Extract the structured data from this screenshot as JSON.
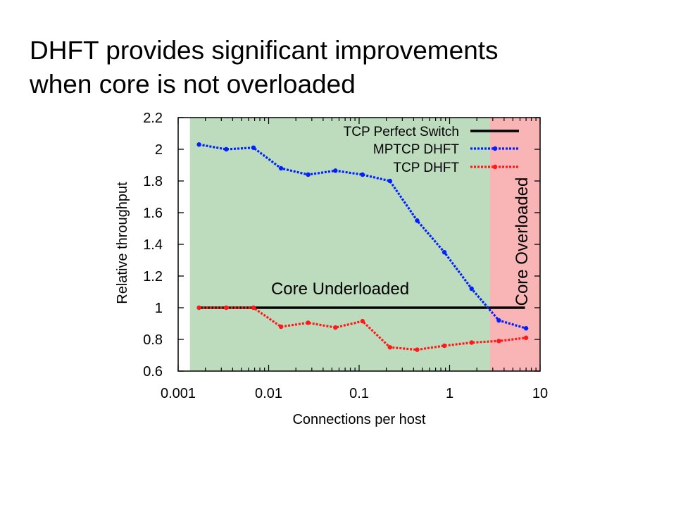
{
  "slide": {
    "title_line1": "DHFT provides significant improvements",
    "title_line2": "when core is not overloaded"
  },
  "chart_data": {
    "type": "line",
    "xlabel": "Connections per host",
    "ylabel": "Relative throughput",
    "xscale": "log",
    "xlim": [
      0.001,
      10
    ],
    "ylim": [
      0.6,
      2.2
    ],
    "xticks": [
      0.001,
      0.01,
      0.1,
      1,
      10
    ],
    "xtick_labels": [
      "0.001",
      "0.01",
      "0.1",
      "1",
      "10"
    ],
    "yticks": [
      0.6,
      0.8,
      1,
      1.2,
      1.4,
      1.6,
      1.8,
      2,
      2.2
    ],
    "ytick_labels": [
      "0.6",
      "0.8",
      "1",
      "1.2",
      "1.4",
      "1.6",
      "1.8",
      "2",
      "2.2"
    ],
    "grid": false,
    "legend_position": "top-right",
    "regions": [
      {
        "label": "Core Underloaded",
        "x_start": 0.00135,
        "x_end": 2.8,
        "color": "#bddcbd"
      },
      {
        "label": "Core Overloaded",
        "x_start": 2.8,
        "x_end": 10,
        "color": "#f9b4b5"
      }
    ],
    "series": [
      {
        "name": "TCP Perfect Switch",
        "color": "#000000",
        "style": "solid",
        "markers": false,
        "x": [
          0.0017,
          6.8
        ],
        "y": [
          1.0,
          1.0
        ]
      },
      {
        "name": "MPTCP DHFT",
        "color": "#0020ff",
        "style": "dotted",
        "markers": true,
        "x": [
          0.0017,
          0.0034,
          0.0068,
          0.0137,
          0.0273,
          0.0547,
          0.109,
          0.219,
          0.438,
          0.875,
          1.75,
          3.5,
          7.0
        ],
        "y": [
          2.03,
          2.0,
          2.01,
          1.88,
          1.84,
          1.865,
          1.84,
          1.8,
          1.55,
          1.35,
          1.12,
          0.92,
          0.87
        ]
      },
      {
        "name": "TCP DHFT",
        "color": "#ff1a1a",
        "style": "dotted",
        "markers": true,
        "x": [
          0.0017,
          0.0034,
          0.0068,
          0.0137,
          0.0273,
          0.0547,
          0.109,
          0.219,
          0.438,
          0.875,
          1.75,
          3.5,
          7.0
        ],
        "y": [
          1.0,
          1.0,
          1.0,
          0.88,
          0.905,
          0.875,
          0.915,
          0.75,
          0.735,
          0.76,
          0.78,
          0.79,
          0.81
        ]
      }
    ]
  }
}
